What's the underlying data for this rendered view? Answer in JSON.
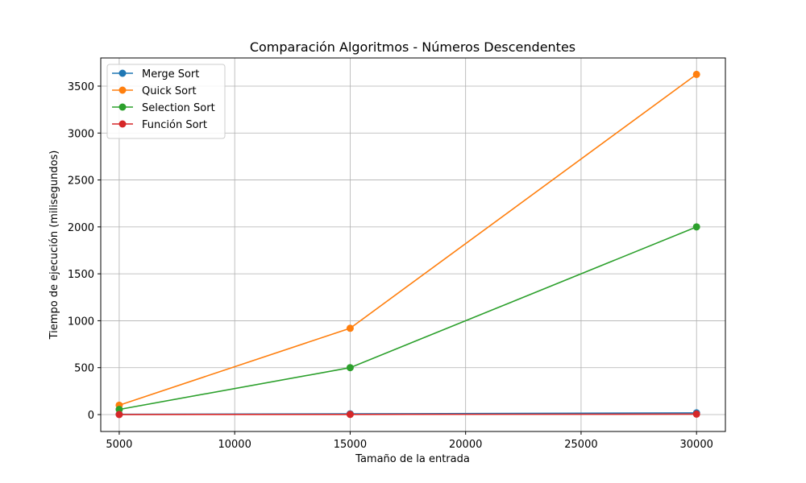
{
  "chart_data": {
    "type": "line",
    "title": "Comparación Algoritmos - Números Descendentes",
    "xlabel": "Tamaño de la entrada",
    "ylabel": "Tiempo de ejecución (milisegundos)",
    "x": [
      5000,
      15000,
      30000
    ],
    "xlim": [
      4200,
      31250
    ],
    "ylim": [
      -180,
      3800
    ],
    "xticks": [
      5000,
      10000,
      15000,
      20000,
      25000,
      30000
    ],
    "yticks": [
      0,
      500,
      1000,
      1500,
      2000,
      2500,
      3000,
      3500
    ],
    "grid": true,
    "legend_position": "top-left",
    "series": [
      {
        "name": "Merge Sort",
        "color": "#1f77b4",
        "values": [
          3,
          8,
          18
        ]
      },
      {
        "name": "Quick Sort",
        "color": "#ff7f0e",
        "values": [
          100,
          920,
          3625
        ]
      },
      {
        "name": "Selection Sort",
        "color": "#2ca02c",
        "values": [
          55,
          500,
          2000
        ]
      },
      {
        "name": "Función Sort",
        "color": "#d62728",
        "values": [
          1,
          2,
          5
        ]
      }
    ]
  }
}
